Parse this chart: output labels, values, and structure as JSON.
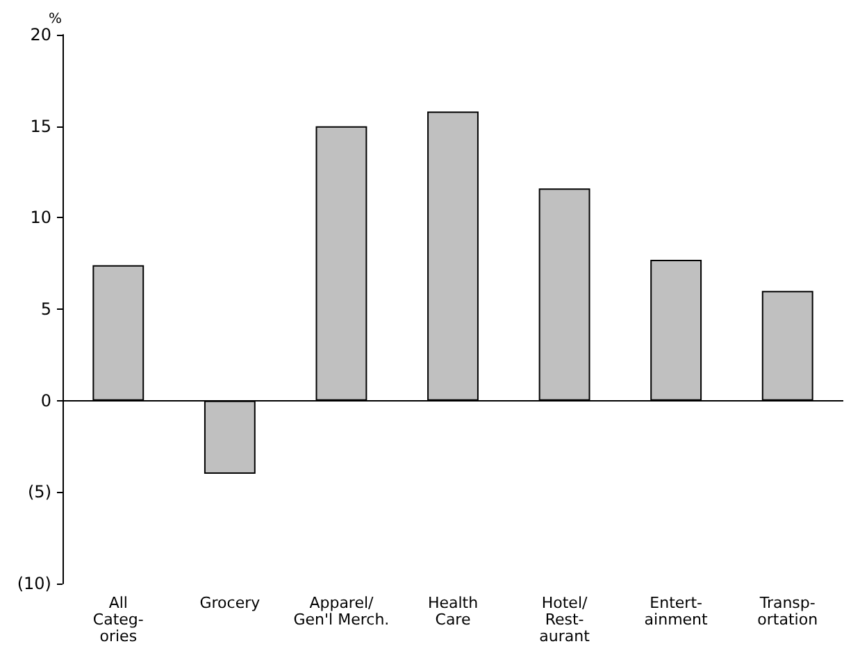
{
  "chart_data": {
    "type": "bar",
    "ylabel": "%",
    "categories": [
      "All\nCateg-\nories",
      "Grocery",
      "Apparel/\nGen'l Merch.",
      "Health\nCare",
      "Hotel/\nRest-\naurant",
      "Entert-\nainment",
      "Transp-\nortation"
    ],
    "values": [
      7.4,
      -4.0,
      15.0,
      15.8,
      11.6,
      7.7,
      6.0
    ],
    "color": "#c0c0c0",
    "ylim": [
      -10,
      20
    ],
    "yticks": [
      {
        "value": -10,
        "label": "(10)"
      },
      {
        "value": -5,
        "label": "(5)"
      },
      0,
      5,
      10,
      15,
      20
    ],
    "ref_lines": [
      {
        "axis": "y",
        "value": 0,
        "color": "#000000"
      }
    ],
    "grid": false
  }
}
